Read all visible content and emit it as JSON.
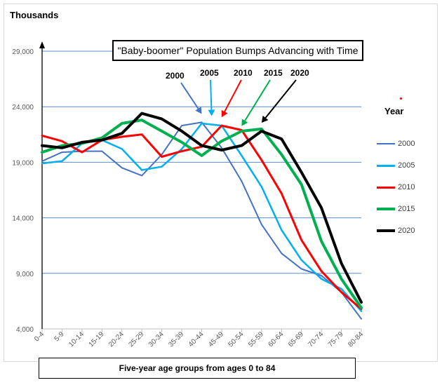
{
  "chart_data": {
    "type": "line",
    "title": "\"Baby-boomer\" Population Bumps Advancing with Time",
    "ylabel": "Thousands",
    "xlabel": "Five-year age groups from ages 0 to 84",
    "ylim": [
      4000,
      29000
    ],
    "yticks": [
      4000,
      9000,
      14000,
      19000,
      24000,
      29000
    ],
    "ytick_labels": [
      "4,000",
      "9,000",
      "14,000",
      "19,000",
      "24,000",
      "29,000"
    ],
    "categories": [
      "0-4",
      "5-9",
      "10-14",
      "15-19",
      "20-24",
      "25-29",
      "30-34",
      "35-39",
      "40-44",
      "45-49",
      "50-54",
      "55-59",
      "60-64",
      "65-69",
      "70-74",
      "75-79",
      "80-84"
    ],
    "legend_title": "Year",
    "series": [
      {
        "name": "2000",
        "color": "#4472c4",
        "width": 2,
        "values": [
          19100,
          19900,
          20000,
          20000,
          18500,
          17800,
          19700,
          22300,
          22600,
          20300,
          17300,
          13400,
          10800,
          9400,
          8800,
          7300,
          4900
        ]
      },
      {
        "name": "2005",
        "color": "#00b0f0",
        "width": 2.5,
        "values": [
          18900,
          19100,
          20700,
          21000,
          20200,
          18300,
          18600,
          20200,
          22500,
          22300,
          19600,
          16800,
          12900,
          10200,
          8500,
          7600,
          5600
        ]
      },
      {
        "name": "2010",
        "color": "#ff0000",
        "width": 3,
        "values": [
          21400,
          20900,
          19900,
          21000,
          21300,
          21500,
          19500,
          20000,
          20400,
          22300,
          21900,
          19200,
          16200,
          12000,
          9200,
          7300,
          5800
        ]
      },
      {
        "name": "2015",
        "color": "#00b050",
        "width": 4,
        "values": [
          19900,
          20500,
          20700,
          21200,
          22500,
          22800,
          21800,
          20800,
          19600,
          20900,
          21800,
          22000,
          19700,
          17000,
          11900,
          8500,
          5900
        ]
      },
      {
        "name": "2020",
        "color": "#000000",
        "width": 4,
        "values": [
          20500,
          20300,
          20800,
          21000,
          21600,
          23400,
          22900,
          21800,
          20500,
          20100,
          20500,
          21800,
          21100,
          18100,
          14900,
          9900,
          6400
        ]
      }
    ],
    "annotations": [
      {
        "label": "2000",
        "color": "#4472c4"
      },
      {
        "label": "2005",
        "color": "#00b0f0"
      },
      {
        "label": "2010",
        "color": "#ff0000"
      },
      {
        "label": "2015",
        "color": "#00b050"
      },
      {
        "label": "2020",
        "color": "#000000"
      }
    ]
  }
}
